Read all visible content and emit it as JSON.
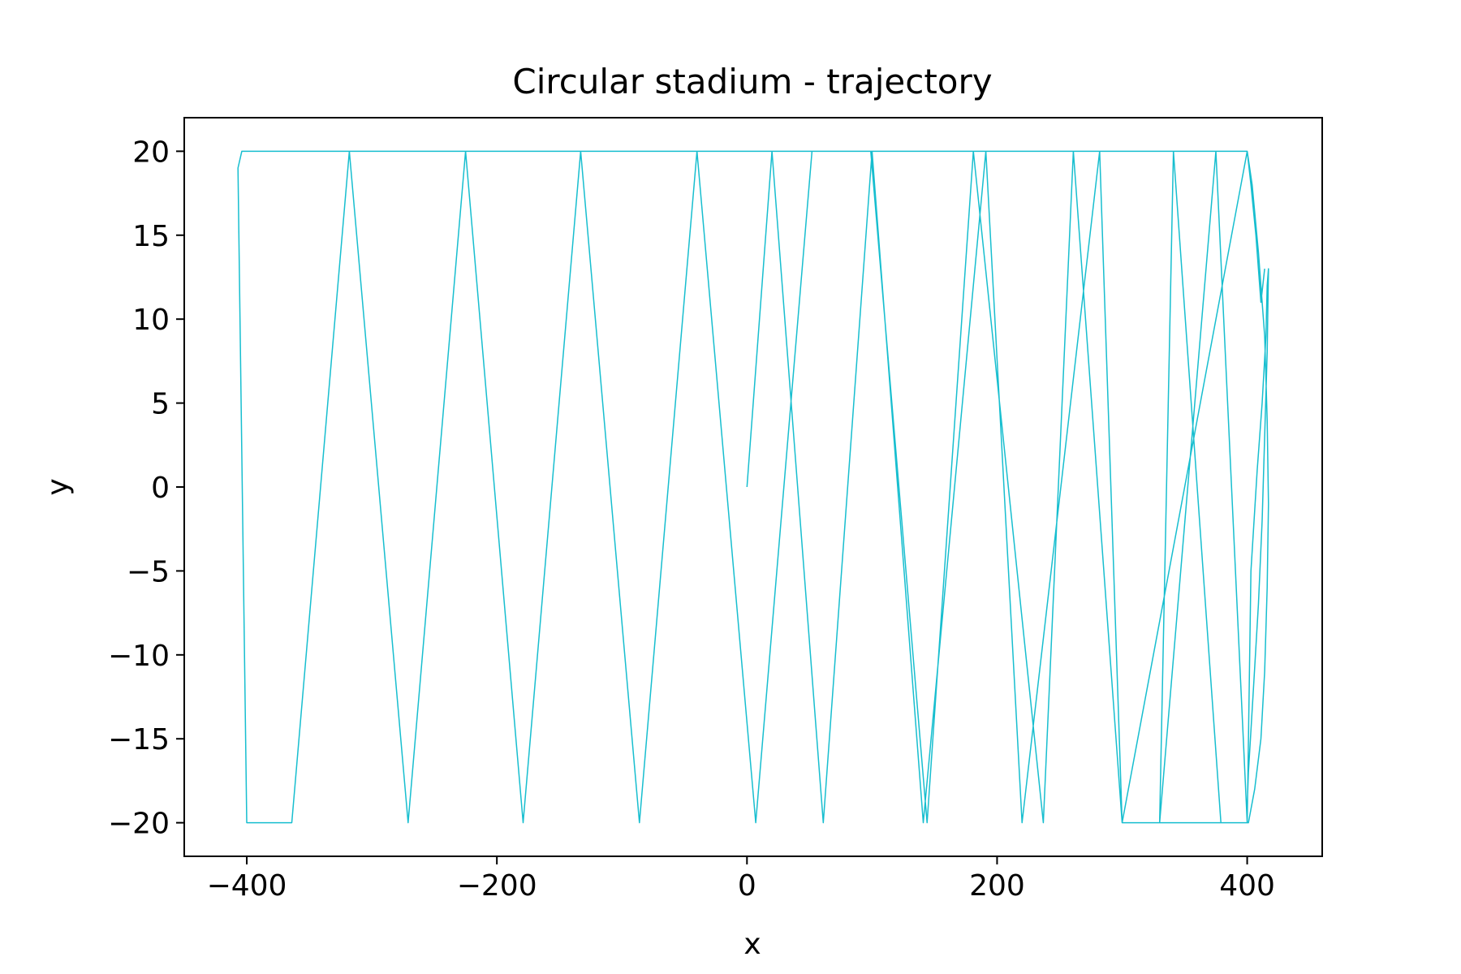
{
  "chart_data": {
    "type": "line",
    "title": "Circular stadium - trajectory",
    "xlabel": "x",
    "ylabel": "y",
    "xlim": [
      -450,
      460
    ],
    "ylim": [
      -22,
      22
    ],
    "xticks": [
      -400,
      -200,
      0,
      200,
      400
    ],
    "yticks": [
      -20,
      -15,
      -10,
      -5,
      0,
      5,
      10,
      15,
      20
    ],
    "xtick_labels": [
      "−400",
      "−200",
      "0",
      "200",
      "400"
    ],
    "ytick_labels": [
      "−20",
      "−15",
      "−10",
      "−5",
      "0",
      "5",
      "10",
      "15",
      "20"
    ],
    "grid": false,
    "legend": "none",
    "series": [
      {
        "color": "#17becf",
        "x": [
          0,
          20,
          61,
          100,
          141,
          191,
          220,
          282,
          300,
          400,
          404,
          409,
          414,
          416,
          417,
          416,
          414,
          411,
          406,
          401,
          379,
          341,
          330,
          375,
          400,
          400,
          401,
          405,
          409,
          412,
          414,
          416,
          417,
          416,
          415,
          412,
          408,
          403,
          400,
          300,
          261,
          237,
          181,
          144,
          99,
          52,
          7,
          -40,
          -86,
          -133,
          -179,
          -225,
          -271,
          -318,
          -364,
          -400,
          -407,
          -404,
          -400,
          400,
          403,
          407,
          411,
          414
        ],
        "y": [
          0,
          20,
          -20,
          20,
          -20,
          20,
          -20,
          20,
          -20,
          20,
          18,
          14,
          9,
          4,
          -1,
          -6,
          -11,
          -15,
          -18,
          -20,
          -20,
          20,
          -20,
          20,
          -20,
          -19,
          -17,
          -12,
          -7,
          -2,
          3,
          8,
          13,
          12,
          9,
          5,
          1,
          -5,
          -20,
          -20,
          20,
          -20,
          20,
          -20,
          20,
          20,
          -20,
          20,
          -20,
          20,
          -20,
          20,
          -20,
          20,
          -20,
          -20,
          19,
          20,
          20,
          20,
          18,
          15,
          11,
          13
        ]
      }
    ]
  }
}
